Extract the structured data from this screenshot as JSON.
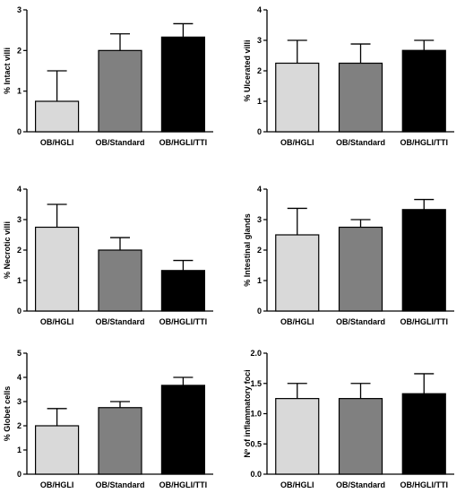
{
  "colors": {
    "bar_light": "#d9d9d9",
    "bar_mid": "#808080",
    "bar_dark": "#000000",
    "axis": "#000000"
  },
  "chart_data": [
    {
      "type": "bar",
      "ylabel": "% Intact villi",
      "categories": [
        "OB/HGLI",
        "OB/Standard",
        "OB/HGLI/TTI"
      ],
      "values": [
        0.75,
        2.0,
        2.33
      ],
      "errors": [
        0.75,
        0.41,
        0.33
      ],
      "ylim": [
        0,
        3
      ],
      "yticks": [
        "0",
        "1",
        "2",
        "3"
      ]
    },
    {
      "type": "bar",
      "ylabel": "% Ulcerated villi",
      "categories": [
        "OB/HGLI",
        "OB/Standard",
        "OB/HGLI/TTI"
      ],
      "values": [
        2.25,
        2.25,
        2.67
      ],
      "errors": [
        0.75,
        0.63,
        0.33
      ],
      "ylim": [
        0,
        4
      ],
      "yticks": [
        "0",
        "1",
        "2",
        "3",
        "4"
      ]
    },
    {
      "type": "bar",
      "ylabel": "% Necrotic villi",
      "categories": [
        "OB/HGLI",
        "OB/Standard",
        "OB/HGLI/TTI"
      ],
      "values": [
        2.75,
        2.0,
        1.33
      ],
      "errors": [
        0.75,
        0.41,
        0.33
      ],
      "ylim": [
        0,
        4
      ],
      "yticks": [
        "0",
        "1",
        "2",
        "3",
        "4"
      ]
    },
    {
      "type": "bar",
      "ylabel": "% Intestinal glands",
      "categories": [
        "OB/HGLI",
        "OB/Standard",
        "OB/HGLI/TTI"
      ],
      "values": [
        2.5,
        2.75,
        3.33
      ],
      "errors": [
        0.87,
        0.25,
        0.33
      ],
      "ylim": [
        0,
        4
      ],
      "yticks": [
        "0",
        "1",
        "2",
        "3",
        "4"
      ]
    },
    {
      "type": "bar",
      "ylabel": "% Globet cells",
      "categories": [
        "OB/HGLI",
        "OB/Standard",
        "OB/HGLI/TTI"
      ],
      "values": [
        2.0,
        2.75,
        3.67
      ],
      "errors": [
        0.71,
        0.25,
        0.33
      ],
      "ylim": [
        0,
        5
      ],
      "yticks": [
        "0",
        "1",
        "2",
        "3",
        "4",
        "5"
      ]
    },
    {
      "type": "bar",
      "ylabel": "Nº of inflammatory foci",
      "categories": [
        "OB/HGLI",
        "OB/Standard",
        "OB/HGLI/TTI"
      ],
      "values": [
        1.25,
        1.25,
        1.33
      ],
      "errors": [
        0.25,
        0.25,
        0.33
      ],
      "ylim": [
        0,
        2.0
      ],
      "yticks": [
        "0.0",
        "0.5",
        "1.0",
        "1.5",
        "2.0"
      ]
    }
  ]
}
